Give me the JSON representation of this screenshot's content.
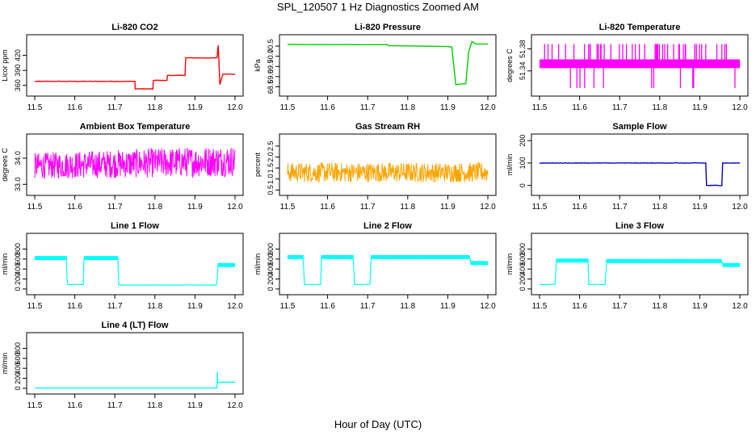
{
  "figure": {
    "title": "SPL_120507  1 Hz Diagnostics Zoomed AM",
    "xlabel": "Hour of Day (UTC)"
  },
  "chart_data": [
    {
      "type": "line",
      "title": "Li-820 CO2",
      "ylabel": "Licor ppm",
      "color": "#ff0000",
      "xlim": [
        11.5,
        12.0
      ],
      "xticks": [
        "11.5",
        "11.6",
        "11.7",
        "11.8",
        "11.9",
        "12.0"
      ],
      "ylim": [
        345,
        455
      ],
      "yticks": [
        "360",
        "390",
        "420"
      ],
      "style": "noisy",
      "series": [
        {
          "x": [
            11.5,
            11.75,
            11.751,
            11.795,
            11.796,
            11.83,
            11.831,
            11.875,
            11.877,
            11.955,
            11.958,
            11.962,
            11.97,
            12.0
          ],
          "y": [
            368,
            368,
            353,
            353,
            370,
            370,
            380,
            380,
            415,
            415,
            440,
            362,
            383,
            382
          ]
        }
      ]
    },
    {
      "type": "line",
      "title": "Li-820 Pressure",
      "ylabel": "kPa",
      "color": "#00cc00",
      "xlim": [
        11.5,
        12.0
      ],
      "xticks": [
        "11.5",
        "11.6",
        "11.7",
        "11.8",
        "11.9",
        "12.0"
      ],
      "ylim": [
        68.2,
        70.9
      ],
      "yticks": [
        "68.5",
        "69.0",
        "69.5",
        "70.0",
        "70.5"
      ],
      "style": "smooth",
      "series": [
        {
          "x": [
            11.5,
            11.75,
            11.752,
            11.9,
            11.91,
            11.92,
            11.94,
            11.945,
            11.952,
            11.96,
            11.97,
            12.0
          ],
          "y": [
            70.58,
            70.57,
            70.52,
            70.48,
            70.45,
            68.6,
            68.65,
            68.65,
            70.2,
            70.72,
            70.6,
            70.6
          ]
        }
      ]
    },
    {
      "type": "line",
      "title": "Li-820 Temperature",
      "ylabel": "degrees C",
      "color": "#ff00ff",
      "xlim": [
        11.5,
        12.0
      ],
      "xticks": [
        "11.5",
        "11.6",
        "11.7",
        "11.8",
        "11.9",
        "12.0"
      ],
      "ylim": [
        51.3,
        51.4
      ],
      "yticks": [
        "51.34",
        "51.38"
      ],
      "style": "band",
      "band": [
        51.345,
        51.361
      ],
      "spikes": [
        51.389,
        51.309
      ],
      "series": [
        {
          "x": [
            11.5,
            12.0
          ],
          "y": [
            51.353,
            51.353
          ]
        }
      ]
    },
    {
      "type": "line",
      "title": "Ambient Box Temperature",
      "ylabel": "degrees C",
      "color": "#ff00ff",
      "xlim": [
        11.5,
        12.0
      ],
      "xticks": [
        "11.5",
        "11.6",
        "11.7",
        "11.8",
        "11.9",
        "12.0"
      ],
      "ylim": [
        32.7,
        34.8
      ],
      "yticks": [
        "33.0",
        "34.0"
      ],
      "style": "envelope",
      "lower": [
        33.2,
        33.3
      ],
      "upper": [
        34.2,
        34.5
      ],
      "series": [
        {
          "x": [
            11.5,
            12.0
          ],
          "y": [
            33.7,
            33.9
          ]
        }
      ]
    },
    {
      "type": "line",
      "title": "Gas Stream RH",
      "ylabel": "percent",
      "color": "#ffa500",
      "xlim": [
        11.5,
        12.0
      ],
      "xticks": [
        "11.5",
        "11.6",
        "11.7",
        "11.8",
        "11.9",
        "12.0"
      ],
      "ylim": [
        0.4,
        2.9
      ],
      "yticks": [
        "0.5",
        "1.0",
        "1.5",
        "2.0",
        "2.5"
      ],
      "style": "envelope",
      "lower": [
        0.85,
        0.85
      ],
      "upper": [
        1.75,
        1.75
      ],
      "series": [
        {
          "x": [
            11.5,
            12.0
          ],
          "y": [
            1.3,
            1.3
          ]
        }
      ]
    },
    {
      "type": "line",
      "title": "Sample Flow",
      "ylabel": "ml/min",
      "color": "#0000cd",
      "xlim": [
        11.5,
        12.0
      ],
      "xticks": [
        "11.5",
        "11.6",
        "11.7",
        "11.8",
        "11.9",
        "12.0"
      ],
      "ylim": [
        -30,
        215
      ],
      "yticks": [
        "0",
        "100",
        "200"
      ],
      "style": "noisy",
      "series": [
        {
          "x": [
            11.5,
            11.915,
            11.917,
            11.955,
            11.957,
            12.0
          ],
          "y": [
            100,
            100,
            0,
            0,
            100,
            100
          ]
        }
      ]
    },
    {
      "type": "line",
      "title": "Line 1 Flow",
      "ylabel": "ml/min",
      "color": "#00ffff",
      "xlim": [
        11.5,
        12.0
      ],
      "xticks": [
        "11.5",
        "11.6",
        "11.7",
        "11.8",
        "11.9",
        "12.0"
      ],
      "ylim": [
        -50,
        1050
      ],
      "yticks": [
        "0",
        "200",
        "400",
        "600",
        "800"
      ],
      "style": "flow",
      "series": [
        {
          "x": [
            11.5,
            11.58,
            11.581,
            11.622,
            11.623,
            11.708,
            11.709,
            11.955,
            11.957,
            12.0
          ],
          "y": [
            620,
            620,
            90,
            90,
            620,
            620,
            80,
            80,
            480,
            480
          ]
        }
      ]
    },
    {
      "type": "line",
      "title": "Line 2 Flow",
      "ylabel": "ml/min",
      "color": "#00ffff",
      "xlim": [
        11.5,
        12.0
      ],
      "xticks": [
        "11.5",
        "11.6",
        "11.7",
        "11.8",
        "11.9",
        "12.0"
      ],
      "ylim": [
        -50,
        1050
      ],
      "yticks": [
        "0",
        "200",
        "400",
        "600",
        "800"
      ],
      "style": "flow",
      "series": [
        {
          "x": [
            11.5,
            11.54,
            11.541,
            11.583,
            11.584,
            11.665,
            11.666,
            11.707,
            11.708,
            11.955,
            11.957,
            12.0
          ],
          "y": [
            640,
            640,
            90,
            90,
            640,
            640,
            90,
            90,
            640,
            640,
            520,
            520
          ]
        }
      ]
    },
    {
      "type": "line",
      "title": "Line 3 Flow",
      "ylabel": "ml/min",
      "color": "#00ffff",
      "xlim": [
        11.5,
        12.0
      ],
      "xticks": [
        "11.5",
        "11.6",
        "11.7",
        "11.8",
        "11.9",
        "12.0"
      ],
      "ylim": [
        -50,
        1050
      ],
      "yticks": [
        "0",
        "200",
        "400",
        "600",
        "800"
      ],
      "style": "flow",
      "series": [
        {
          "x": [
            11.5,
            11.54,
            11.541,
            11.622,
            11.623,
            11.665,
            11.666,
            11.955,
            11.957,
            12.0
          ],
          "y": [
            90,
            90,
            570,
            570,
            90,
            90,
            560,
            560,
            480,
            480
          ]
        }
      ]
    },
    {
      "type": "line",
      "title": "Line 4 (LT) Flow",
      "ylabel": "ml/min",
      "color": "#00ffff",
      "xlim": [
        11.5,
        12.0
      ],
      "xticks": [
        "11.5",
        "11.6",
        "11.7",
        "11.8",
        "11.9",
        "12.0"
      ],
      "ylim": [
        -50,
        1050
      ],
      "yticks": [
        "0",
        "200",
        "400",
        "600",
        "800"
      ],
      "style": "smooth",
      "series": [
        {
          "x": [
            11.5,
            11.955,
            11.956,
            11.9565,
            11.962,
            12.0
          ],
          "y": [
            5,
            5,
            330,
            110,
            120,
            120
          ]
        }
      ]
    }
  ]
}
